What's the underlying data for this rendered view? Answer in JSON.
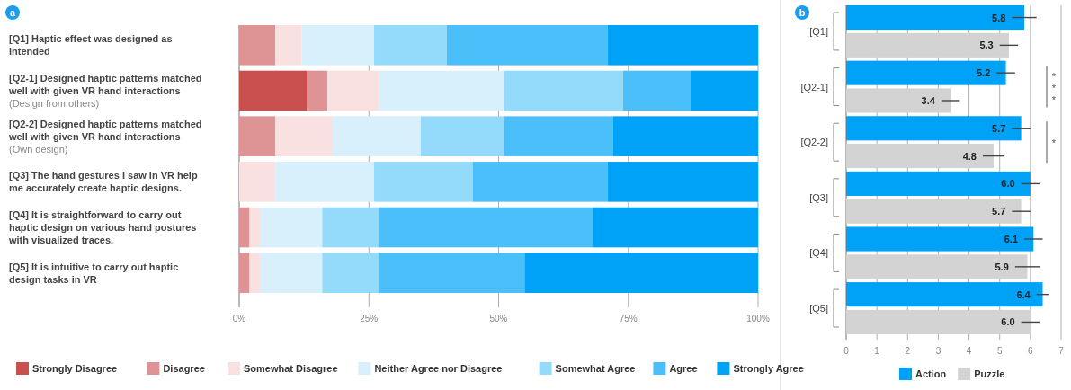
{
  "chart_data": [
    {
      "type": "bar",
      "orientation": "horizontal",
      "stacked": true,
      "categories": [
        "[Q1] Haptic effect was designed as intended",
        "[Q2-1] Designed haptic patterns matched well with given VR hand interactions (Design from others)",
        "[Q2-2] Designed haptic patterns matched well with given VR hand interactions (Own design)",
        "[Q3] The hand gestures I saw in VR help me accurately create haptic designs.",
        "[Q4] It is straightforward to carry out haptic design on various hand postures with visualized traces.",
        "[Q5] It is intuitive to carry out haptic design tasks in VR"
      ],
      "series": [
        {
          "name": "Strongly Disagree",
          "color": "#c9504f",
          "values": [
            0,
            13,
            0,
            0,
            0,
            0
          ]
        },
        {
          "name": "Disagree",
          "color": "#de9494",
          "values": [
            7,
            4,
            7,
            0,
            2,
            2
          ]
        },
        {
          "name": "Somewhat Disagree",
          "color": "#f9e1e1",
          "values": [
            5,
            10,
            11,
            7,
            2,
            2
          ]
        },
        {
          "name": "Neither Agree nor Disagree",
          "color": "#d8f0fb",
          "values": [
            14,
            24,
            17,
            19,
            12,
            12
          ]
        },
        {
          "name": "Somewhat Agree",
          "color": "#94dbfb",
          "values": [
            14,
            23,
            16,
            19,
            11,
            11
          ]
        },
        {
          "name": "Agree",
          "color": "#4bbffa",
          "values": [
            31,
            13,
            21,
            26,
            41,
            28
          ]
        },
        {
          "name": "Strongly Agree",
          "color": "#00a2f8",
          "values": [
            29,
            13,
            28,
            29,
            32,
            45
          ]
        }
      ],
      "xlim": [
        0,
        100
      ],
      "xticks": [
        {
          "value": 0,
          "label": "0%"
        },
        {
          "value": 25,
          "label": "25%"
        },
        {
          "value": 50,
          "label": "50%"
        },
        {
          "value": 75,
          "label": "75%"
        },
        {
          "value": 100,
          "label": "100%"
        }
      ],
      "grid": "x",
      "legend": "bottom",
      "annotations": [
        "a"
      ]
    },
    {
      "type": "bar",
      "orientation": "horizontal",
      "categories": [
        "[Q1]",
        "[Q2-1]",
        "[Q2-2]",
        "[Q3]",
        "[Q4]",
        "[Q5]"
      ],
      "series": [
        {
          "name": "Action",
          "color": "#00a2f8",
          "values": [
            5.8,
            5.2,
            5.7,
            6.0,
            6.1,
            6.4
          ],
          "errors": [
            0.4,
            0.3,
            0.3,
            0.3,
            0.3,
            0.2
          ],
          "value_labels": [
            "5.8",
            "5.2",
            "5.7",
            "6.0",
            "6.1",
            "6.4"
          ]
        },
        {
          "name": "Puzzle",
          "color": "#d3d3d3",
          "values": [
            5.3,
            3.4,
            4.8,
            5.7,
            5.9,
            6.0
          ],
          "errors": [
            0.3,
            0.3,
            0.35,
            0.3,
            0.4,
            0.3
          ],
          "value_labels": [
            "5.3",
            "3.4",
            "4.8",
            "5.7",
            "5.9",
            "6.0"
          ]
        }
      ],
      "xlim": [
        0,
        7
      ],
      "xticks": [
        0,
        1,
        2,
        3,
        4,
        5,
        6,
        7
      ],
      "grid": "x",
      "legend": "bottom",
      "annotations": [
        "b",
        "***",
        "*"
      ]
    }
  ]
}
